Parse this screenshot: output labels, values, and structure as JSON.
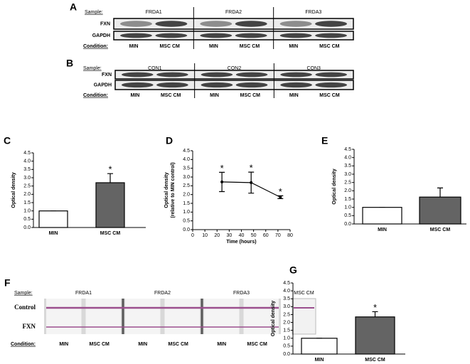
{
  "blots": [
    {
      "panel": "A",
      "sample_label": "Sample:",
      "samples": [
        "FRDA1",
        "FRDA2",
        "FRDA3"
      ],
      "rows": [
        "FXN",
        "GAPDH"
      ],
      "condition_label": "Condition:",
      "conditions": [
        "MIN",
        "MSC CM",
        "MIN",
        "MSC CM",
        "MIN",
        "MSC CM"
      ]
    },
    {
      "panel": "B",
      "sample_label": "Sample:",
      "samples": [
        "CON1",
        "CON2",
        "CON3"
      ],
      "rows": [
        "FXN",
        "GAPDH"
      ],
      "condition_label": "Condition:",
      "conditions": [
        "MIN",
        "MSC CM",
        "MIN",
        "MSC CM",
        "MIN",
        "MSC CM"
      ]
    },
    {
      "panel": "F",
      "sample_label": "Sample:",
      "samples": [
        "FRDA1",
        "FRDA2",
        "FRDA3",
        "MSC CM"
      ],
      "rows": [
        "Control",
        "FXN"
      ],
      "condition_label": "Condition:",
      "conditions": [
        "MIN",
        "MSC CM",
        "MIN",
        "MSC CM",
        "MIN",
        "MSC CM"
      ]
    }
  ],
  "chart_data": [
    {
      "type": "bar",
      "panel": "C",
      "ylabel": [
        "Optical density"
      ],
      "categories": [
        "MIN",
        "MSC CM"
      ],
      "values": [
        1.0,
        2.7
      ],
      "errors": [
        0,
        0.55
      ],
      "significance": [
        null,
        "*"
      ],
      "colors": [
        "#ffffff",
        "#646464"
      ],
      "ylim": [
        0,
        4.5
      ],
      "yticks": [
        {
          "value": 0,
          "label": "0.0"
        },
        0.5,
        {
          "value": 1,
          "label": "1.0"
        },
        1.5,
        {
          "value": 2,
          "label": "2.0"
        },
        2.5,
        {
          "value": 3,
          "label": "3.0"
        },
        3.5,
        {
          "value": 4,
          "label": "4.0"
        },
        4.5
      ]
    },
    {
      "type": "line",
      "panel": "D",
      "ylabel": [
        "Optical density",
        "(relative to MIN control)"
      ],
      "xlabel": "Time (hours)",
      "x": [
        24,
        48,
        72
      ],
      "values": [
        2.72,
        2.68,
        1.85
      ],
      "errors": [
        0.55,
        0.6,
        0.08
      ],
      "significance": [
        "*",
        "*",
        "*"
      ],
      "color": "#000000",
      "xlim": [
        0,
        80
      ],
      "xticks": [
        0,
        10,
        20,
        30,
        40,
        50,
        60,
        70,
        80
      ],
      "ylim": [
        0,
        4.5
      ],
      "yticks": [
        {
          "value": 0,
          "label": "0.0"
        },
        0.5,
        {
          "value": 1,
          "label": "1.0"
        },
        1.5,
        {
          "value": 2,
          "label": "2.0"
        },
        2.5,
        {
          "value": 3,
          "label": "3.0"
        },
        3.5,
        {
          "value": 4,
          "label": "4.0"
        },
        4.5
      ]
    },
    {
      "type": "bar",
      "panel": "E",
      "ylabel": [
        "Optical density"
      ],
      "categories": [
        "MIN",
        "MSC CM"
      ],
      "values": [
        1.0,
        1.62
      ],
      "errors": [
        0,
        0.55
      ],
      "significance": [
        null,
        null
      ],
      "colors": [
        "#ffffff",
        "#646464"
      ],
      "ylim": [
        0,
        4.5
      ],
      "yticks": [
        {
          "value": 0,
          "label": "0.0"
        },
        0.5,
        {
          "value": 1,
          "label": "1.0"
        },
        1.5,
        {
          "value": 2,
          "label": "2.0"
        },
        2.5,
        {
          "value": 3,
          "label": "3.0"
        },
        3.5,
        {
          "value": 4,
          "label": "4.0"
        },
        4.5
      ]
    },
    {
      "type": "bar",
      "panel": "G",
      "ylabel": [
        "Optical density"
      ],
      "categories": [
        "MIN",
        "MSC CM"
      ],
      "values": [
        1.0,
        2.35
      ],
      "errors": [
        0,
        0.33
      ],
      "significance": [
        null,
        "*"
      ],
      "colors": [
        "#ffffff",
        "#646464"
      ],
      "ylim": [
        0,
        4.5
      ],
      "yticks": [
        {
          "value": 0,
          "label": "0.0"
        },
        0.5,
        {
          "value": 1,
          "label": "1.0"
        },
        1.5,
        {
          "value": 2,
          "label": "2.0"
        },
        2.5,
        {
          "value": 3,
          "label": "3.0"
        },
        3.5,
        {
          "value": 4,
          "label": "4.0"
        },
        4.5
      ]
    }
  ]
}
